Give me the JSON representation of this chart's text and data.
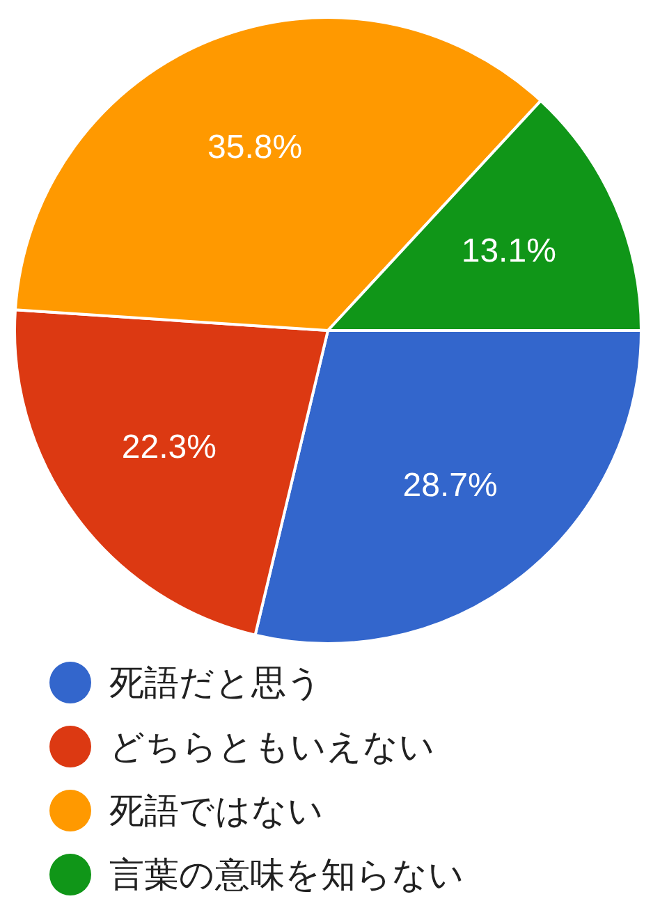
{
  "chart_data": {
    "type": "pie",
    "categories": [
      "死語だと思う",
      "どちらともいえない",
      "死語ではない",
      "言葉の意味を知らない"
    ],
    "values": [
      28.7,
      22.3,
      35.8,
      13.1
    ],
    "colors": [
      "#3366cc",
      "#dc3912",
      "#ff9900",
      "#109618"
    ],
    "value_labels": [
      "28.7%",
      "22.3%",
      "35.8%",
      "13.1%"
    ],
    "legend": "bottom"
  }
}
